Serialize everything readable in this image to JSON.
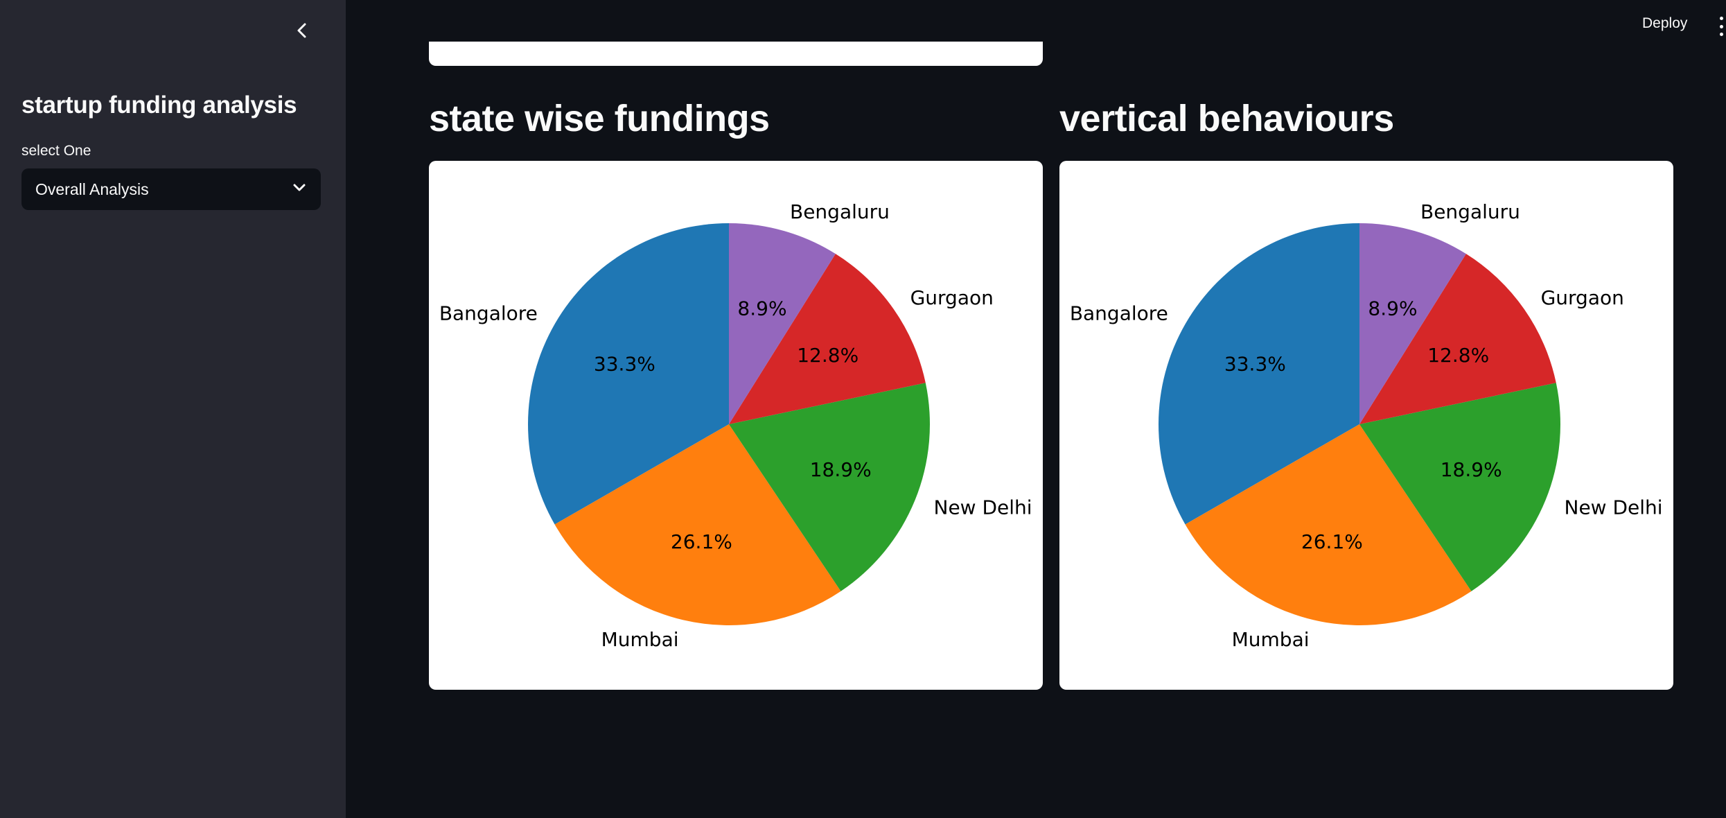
{
  "sidebar": {
    "collapse_icon": "chevron-left-icon",
    "title": "startup funding analysis",
    "select_label": "select One",
    "select_value": "Overall Analysis",
    "select_icon": "chevron-down-icon"
  },
  "header": {
    "deploy_label": "Deploy",
    "menu_icon": "vertical-dots-menu-icon"
  },
  "main": {
    "sections": [
      {
        "title": "state wise fundings"
      },
      {
        "title": "vertical behaviours"
      }
    ]
  },
  "colors": {
    "page_background": "#0e1117",
    "sidebar_background": "#262730",
    "text": "#fafafa"
  },
  "chart_data": [
    {
      "type": "pie",
      "title": "",
      "slices": [
        {
          "label": "Bangalore",
          "value": 33.3,
          "pct_label": "33.3%",
          "color": "#1f77b4"
        },
        {
          "label": "Mumbai",
          "value": 26.1,
          "pct_label": "26.1%",
          "color": "#ff7f0e"
        },
        {
          "label": "New Delhi",
          "value": 18.9,
          "pct_label": "18.9%",
          "color": "#2ca02c"
        },
        {
          "label": "Gurgaon",
          "value": 12.8,
          "pct_label": "12.8%",
          "color": "#d62728"
        },
        {
          "label": "Bengaluru",
          "value": 8.9,
          "pct_label": "8.9%",
          "color": "#9467bd"
        }
      ],
      "start_angle": "top",
      "direction": "counterclockwise"
    },
    {
      "type": "pie",
      "title": "",
      "slices": [
        {
          "label": "Bangalore",
          "value": 33.3,
          "pct_label": "33.3%",
          "color": "#1f77b4"
        },
        {
          "label": "Mumbai",
          "value": 26.1,
          "pct_label": "26.1%",
          "color": "#ff7f0e"
        },
        {
          "label": "New Delhi",
          "value": 18.9,
          "pct_label": "18.9%",
          "color": "#2ca02c"
        },
        {
          "label": "Gurgaon",
          "value": 12.8,
          "pct_label": "12.8%",
          "color": "#d62728"
        },
        {
          "label": "Bengaluru",
          "value": 8.9,
          "pct_label": "8.9%",
          "color": "#9467bd"
        }
      ],
      "start_angle": "top",
      "direction": "counterclockwise"
    }
  ]
}
